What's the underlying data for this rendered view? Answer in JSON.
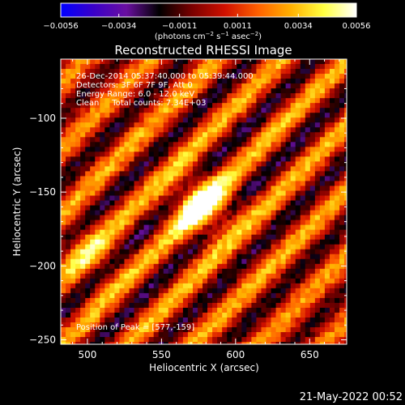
{
  "chart_data": {
    "type": "heatmap",
    "title": "Reconstructed RHESSI Image",
    "xlabel": "Heliocentric X (arcsec)",
    "ylabel": "Heliocentric Y (arcsec)",
    "xlim": [
      482,
      675
    ],
    "ylim": [
      -253,
      -60
    ],
    "x_ticks": [
      500,
      550,
      600,
      650
    ],
    "y_ticks": [
      -100,
      -150,
      -200,
      -250
    ],
    "x_tick_labels": [
      "500",
      "550",
      "600",
      "650"
    ],
    "y_tick_labels": [
      "−100",
      "−150",
      "−200",
      "−250"
    ],
    "colorbar": {
      "range": [
        -0.0056,
        0.0056
      ],
      "tick_values": [
        -0.0056,
        -0.0034,
        -0.0011,
        0.0011,
        0.0034,
        0.0056
      ],
      "tick_labels": [
        "−0.0056",
        "−0.0034",
        "−0.0011",
        "0.0011",
        "0.0034",
        "0.0056"
      ],
      "unit_parts": [
        "(photons cm",
        "−2",
        " s",
        "−1",
        " asec",
        "−2",
        ")"
      ],
      "colormap": [
        "#0000ff",
        "#3a00c8",
        "#6a0fa0",
        "#000000",
        "#7a0000",
        "#d01000",
        "#ff6000",
        "#ffb000",
        "#ffff40",
        "#ffffff"
      ]
    },
    "annotations": [
      "26-Dec-2014 05:37:40.000 to 05:39:44.000",
      "Detectors: 3F 6F 7F 9F, Att 0",
      "Energy Range: 6.0 - 12.0 keV",
      "Clean     Total counts: 7.34E+03"
    ],
    "peak_label": "Position of Peak = [577,-159]",
    "peak": [
      577,
      -159
    ],
    "secondary_source": [
      500,
      -190
    ],
    "grid": false
  },
  "footer": {
    "date": "21-May-2022 00:52"
  }
}
